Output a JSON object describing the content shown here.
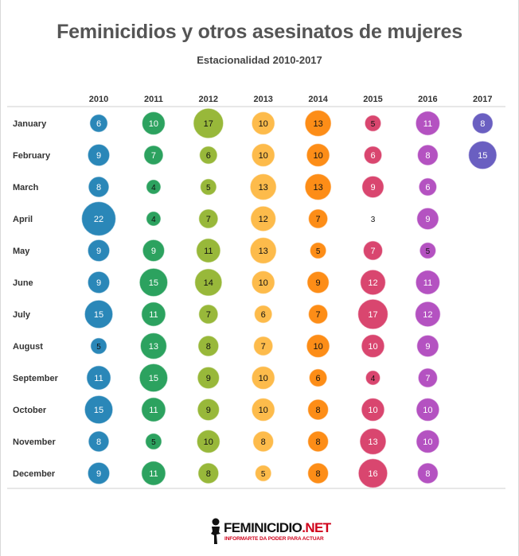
{
  "chart_data": {
    "type": "scatter",
    "title": "Feminicidios y otros asesinatos de mujeres",
    "subtitle": "Estacionalidad 2010-2017",
    "years": [
      "2010",
      "2011",
      "2012",
      "2013",
      "2014",
      "2015",
      "2016",
      "2017"
    ],
    "months": [
      "January",
      "February",
      "March",
      "April",
      "May",
      "June",
      "July",
      "August",
      "September",
      "October",
      "November",
      "December"
    ],
    "year_colors": [
      "#2a87b8",
      "#2ca25f",
      "#98b83a",
      "#fdbb4b",
      "#fd8d17",
      "#d9466f",
      "#b452c1",
      "#6a5fc1"
    ],
    "series": [
      {
        "name": "2010",
        "values": [
          6,
          9,
          8,
          22,
          9,
          9,
          15,
          5,
          11,
          15,
          8,
          9
        ]
      },
      {
        "name": "2011",
        "values": [
          10,
          7,
          4,
          4,
          9,
          15,
          11,
          13,
          15,
          11,
          5,
          11
        ]
      },
      {
        "name": "2012",
        "values": [
          17,
          6,
          5,
          7,
          11,
          14,
          7,
          8,
          9,
          9,
          10,
          8
        ]
      },
      {
        "name": "2013",
        "values": [
          10,
          10,
          13,
          12,
          13,
          10,
          6,
          7,
          10,
          10,
          8,
          5
        ]
      },
      {
        "name": "2014",
        "values": [
          13,
          10,
          13,
          7,
          5,
          9,
          7,
          10,
          6,
          8,
          8,
          8
        ]
      },
      {
        "name": "2015",
        "values": [
          5,
          6,
          9,
          3,
          7,
          12,
          17,
          10,
          4,
          10,
          13,
          16
        ]
      },
      {
        "name": "2016",
        "values": [
          11,
          8,
          6,
          9,
          5,
          11,
          12,
          9,
          7,
          10,
          10,
          8
        ]
      },
      {
        "name": "2017",
        "values": [
          8,
          15,
          null,
          null,
          null,
          null,
          null,
          null,
          null,
          null,
          null,
          null
        ]
      }
    ]
  },
  "footer": {
    "logo_name": "FEMINICIDIO",
    "logo_suffix": ".NET",
    "tagline": "INFORMARTE DA PODER PARA ACTUAR"
  }
}
